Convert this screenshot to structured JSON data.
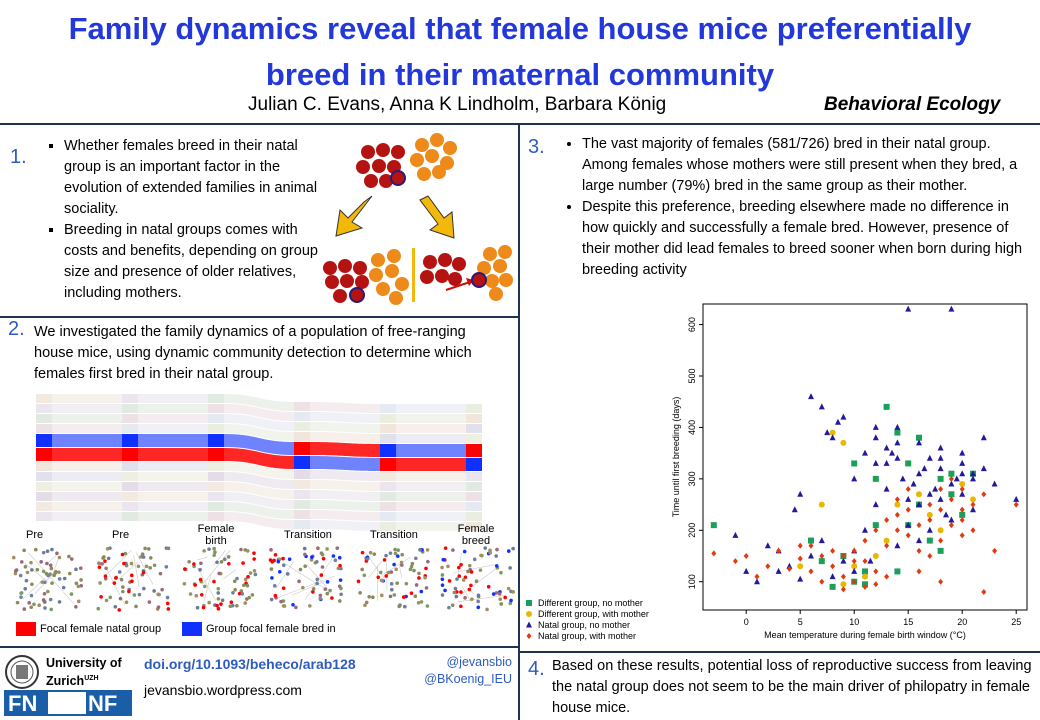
{
  "header": {
    "title_line1": "Family dynamics reveal that female house mice preferentially",
    "title_line2": "breed in their maternal community",
    "authors": "Julian C. Evans, Anna K Lindholm,  Barbara König",
    "journal": "Behavioral Ecology"
  },
  "sec1": {
    "num": "1.",
    "bullets": [
      "Whether females breed in their natal group is an important factor in the evolution of extended families in animal sociality.",
      "Breeding in natal groups comes with costs and benefits, depending  on group size and presence of older relatives, including mothers."
    ]
  },
  "sec2": {
    "num": "2.",
    "text": "We investigated the family dynamics of a population of free-ranging house mice, using dynamic community detection to determine which females first bred in their natal group.",
    "stage_labels": [
      "Pre",
      "Pre",
      "Female birth",
      "Transition",
      "Transition",
      "Female breed"
    ],
    "legend_red": "Focal female natal group",
    "legend_blue": "Group focal female bred in",
    "colors": {
      "red": "#ff0000",
      "blue": "#1030ff"
    }
  },
  "sec3": {
    "num": "3.",
    "bullets": [
      "The vast majority of females (581/726) bred in their natal group. Among females whose mothers were still present when they bred, a large number (79%) bred in the same group as their mother.",
      "Despite this preference,  breeding elsewhere  made no difference  in how quickly and successfully a female bred. However, presence of their mother did lead females to breed sooner when born during high breeding activity"
    ]
  },
  "sec4": {
    "num": "4.",
    "text": "Based on these results, potential loss of reproductive success from leaving the natal group does not seem to be the main driver of philopatry in female house mice."
  },
  "footer": {
    "uni_line1": "University of",
    "uni_line2": "Zurich",
    "uni_sup": "UZH",
    "doi": "doi.org/10.1093/beheco/arab128",
    "website": "jevansbio.wordpress.com",
    "handle1": "@jevansbio",
    "handle2": "@BKoenig_IEU",
    "snf_left": "FN",
    "snf_right": "NF"
  },
  "chart_data": {
    "type": "scatter",
    "title": "",
    "xlabel": "Mean temperature during female birth window (°C)",
    "ylabel": "Time until first breeding (days)",
    "xlim": [
      -4,
      26
    ],
    "ylim": [
      45,
      640
    ],
    "xticks": [
      0,
      5,
      10,
      15,
      20,
      25
    ],
    "yticks": [
      100,
      200,
      300,
      400,
      500,
      600
    ],
    "legend_position": "bottom-left-outside",
    "series": [
      {
        "name": "Different group, no mother",
        "color": "#1aa05a",
        "marker": "square",
        "points": [
          [
            -3,
            210
          ],
          [
            6,
            180
          ],
          [
            8,
            90
          ],
          [
            9,
            150
          ],
          [
            10,
            100
          ],
          [
            11,
            120
          ],
          [
            12,
            210
          ],
          [
            13,
            440
          ],
          [
            14,
            390
          ],
          [
            15,
            330
          ],
          [
            16,
            250
          ],
          [
            17,
            180
          ],
          [
            18,
            300
          ],
          [
            19,
            270
          ],
          [
            20,
            230
          ],
          [
            21,
            310
          ],
          [
            14,
            120
          ],
          [
            10,
            330
          ],
          [
            16,
            380
          ],
          [
            7,
            140
          ],
          [
            12,
            300
          ],
          [
            18,
            160
          ],
          [
            19,
            310
          ],
          [
            11,
            95
          ],
          [
            15,
            210
          ]
        ]
      },
      {
        "name": "Different group, with mother",
        "color": "#e8b800",
        "marker": "circle",
        "points": [
          [
            5,
            130
          ],
          [
            7,
            250
          ],
          [
            8,
            390
          ],
          [
            9,
            370
          ],
          [
            10,
            130
          ],
          [
            11,
            110
          ],
          [
            12,
            150
          ],
          [
            14,
            250
          ],
          [
            16,
            270
          ],
          [
            18,
            200
          ],
          [
            20,
            290
          ],
          [
            9,
            95
          ],
          [
            13,
            180
          ],
          [
            17,
            230
          ],
          [
            21,
            260
          ]
        ]
      },
      {
        "name": "Natal group, no mother",
        "color": "#221a9a",
        "marker": "triangle",
        "points": [
          [
            -1,
            190
          ],
          [
            0,
            120
          ],
          [
            1,
            100
          ],
          [
            2,
            170
          ],
          [
            3,
            160
          ],
          [
            4,
            130
          ],
          [
            4.5,
            240
          ],
          [
            5,
            270
          ],
          [
            6,
            460
          ],
          [
            7,
            440
          ],
          [
            7.5,
            390
          ],
          [
            8,
            380
          ],
          [
            8.5,
            410
          ],
          [
            9,
            420
          ],
          [
            10,
            160
          ],
          [
            11,
            200
          ],
          [
            11.5,
            140
          ],
          [
            12,
            400
          ],
          [
            13,
            330
          ],
          [
            13.5,
            350
          ],
          [
            14,
            370
          ],
          [
            14.5,
            300
          ],
          [
            15,
            630
          ],
          [
            15.5,
            290
          ],
          [
            16,
            250
          ],
          [
            16.5,
            320
          ],
          [
            17,
            340
          ],
          [
            17.5,
            280
          ],
          [
            18,
            360
          ],
          [
            18.5,
            230
          ],
          [
            19,
            630
          ],
          [
            19.5,
            300
          ],
          [
            20,
            330
          ],
          [
            21,
            310
          ],
          [
            22,
            380
          ],
          [
            23,
            290
          ],
          [
            25,
            260
          ],
          [
            12,
            250
          ],
          [
            14,
            170
          ],
          [
            15,
            210
          ],
          [
            16,
            180
          ],
          [
            17,
            200
          ],
          [
            18,
            260
          ],
          [
            19,
            220
          ],
          [
            20,
            270
          ],
          [
            21,
            240
          ],
          [
            13,
            280
          ],
          [
            10,
            120
          ],
          [
            9,
            140
          ],
          [
            8,
            110
          ],
          [
            6,
            150
          ],
          [
            11,
            350
          ],
          [
            12,
            380
          ],
          [
            13,
            360
          ],
          [
            14,
            340
          ],
          [
            15,
            260
          ],
          [
            16,
            310
          ],
          [
            17,
            270
          ],
          [
            18,
            320
          ],
          [
            19,
            290
          ],
          [
            20,
            350
          ],
          [
            21,
            300
          ],
          [
            22,
            320
          ],
          [
            3,
            120
          ],
          [
            5,
            105
          ],
          [
            7,
            180
          ],
          [
            10,
            300
          ],
          [
            12,
            330
          ],
          [
            14,
            400
          ],
          [
            16,
            370
          ],
          [
            18,
            340
          ],
          [
            20,
            310
          ]
        ]
      },
      {
        "name": "Natal group, with mother",
        "color": "#e03a10",
        "marker": "diamond",
        "points": [
          [
            -3,
            155
          ],
          [
            -1,
            140
          ],
          [
            0,
            150
          ],
          [
            1,
            110
          ],
          [
            2,
            130
          ],
          [
            3,
            160
          ],
          [
            4,
            125
          ],
          [
            5,
            145
          ],
          [
            6,
            120
          ],
          [
            7,
            100
          ],
          [
            8,
            130
          ],
          [
            9,
            150
          ],
          [
            10,
            160
          ],
          [
            11,
            90
          ],
          [
            12,
            200
          ],
          [
            13,
            170
          ],
          [
            14,
            230
          ],
          [
            15,
            190
          ],
          [
            16,
            210
          ],
          [
            17,
            250
          ],
          [
            18,
            240
          ],
          [
            19,
            300
          ],
          [
            20,
            280
          ],
          [
            21,
            250
          ],
          [
            22,
            80
          ],
          [
            25,
            250
          ],
          [
            8,
            160
          ],
          [
            9,
            110
          ],
          [
            10,
            140
          ],
          [
            11,
            180
          ],
          [
            12,
            120
          ],
          [
            13,
            220
          ],
          [
            14,
            200
          ],
          [
            15,
            240
          ],
          [
            16,
            160
          ],
          [
            17,
            220
          ],
          [
            18,
            280
          ],
          [
            19,
            210
          ],
          [
            20,
            220
          ],
          [
            21,
            200
          ],
          [
            6,
            170
          ],
          [
            7,
            150
          ],
          [
            9,
            85
          ],
          [
            10,
            100
          ],
          [
            12,
            95
          ],
          [
            14,
            260
          ],
          [
            15,
            280
          ],
          [
            16,
            120
          ],
          [
            17,
            150
          ],
          [
            18,
            100
          ],
          [
            19,
            260
          ],
          [
            20,
            190
          ],
          [
            5,
            170
          ],
          [
            11,
            140
          ],
          [
            13,
            110
          ],
          [
            18,
            180
          ],
          [
            20,
            240
          ],
          [
            22,
            270
          ],
          [
            23,
            160
          ]
        ]
      }
    ]
  }
}
